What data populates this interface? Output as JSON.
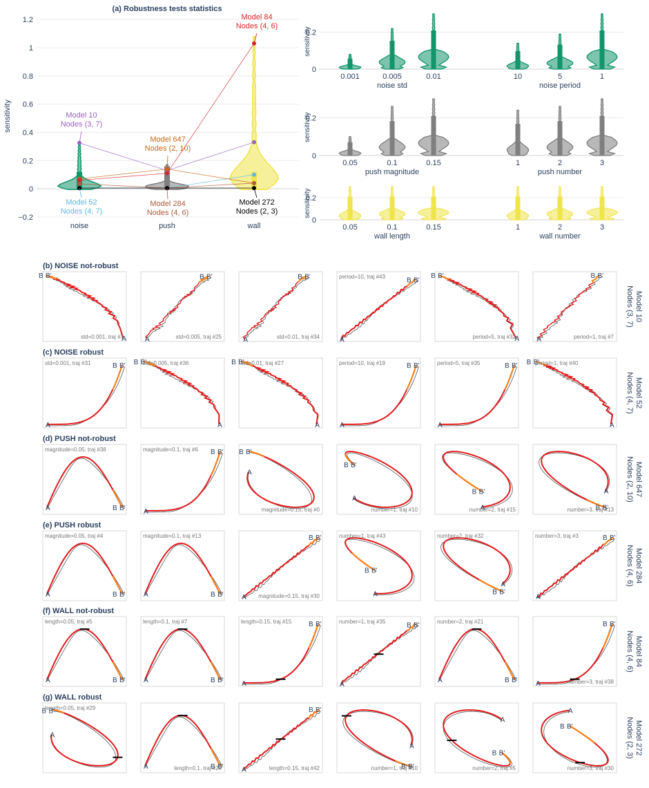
{
  "chart_data": [
    {
      "id": "a",
      "type": "violin",
      "title": "(a) Robustness tests statistics",
      "ylabel": "sensitivity",
      "ylim": [
        -0.22,
        1.25
      ],
      "yticks": [
        "−0.2",
        "0",
        "0.2",
        "0.4",
        "0.6",
        "0.8",
        "1",
        "1.2"
      ],
      "ytick_values": [
        -0.2,
        0,
        0.2,
        0.4,
        0.6,
        0.8,
        1,
        1.2
      ],
      "categories": [
        "noise",
        "push",
        "wall"
      ],
      "violin_colors": [
        "#12956b",
        "#7f7f7f",
        "#efe44a"
      ],
      "violin_max": [
        0.33,
        0.17,
        1.08
      ],
      "models": [
        {
          "model": "Model 10",
          "nodes": "Nodes (3, 7)",
          "color": "#9a62c4",
          "values": [
            0.325,
            0.13,
            0.33
          ]
        },
        {
          "model": "Model 52",
          "nodes": "Nodes (4, 7)",
          "color": "#5eb7e0",
          "values": [
            0.005,
            0.005,
            0.1
          ]
        },
        {
          "model": "Model 647",
          "nodes": "Nodes (2, 10)",
          "color": "#cc6611",
          "values": [
            0.07,
            0.14,
            0.04
          ]
        },
        {
          "model": "Model 284",
          "nodes": "Nodes (4, 6)",
          "color": "#b05a3c",
          "values": [
            0.035,
            0.005,
            0.04
          ]
        },
        {
          "model": "Model 84",
          "nodes": "Nodes (4, 6)",
          "color": "#d62728",
          "values": [
            0.06,
            0.11,
            1.03
          ]
        },
        {
          "model": "Model 272",
          "nodes": "Nodes (2, 3)",
          "color": "#000000",
          "values": [
            0.005,
            0.005,
            0.005
          ]
        }
      ]
    },
    {
      "id": "noise",
      "type": "violin",
      "ylabel": "sensitivity",
      "ylim": [
        0,
        0.3
      ],
      "yticks": [
        "0",
        "0.2"
      ],
      "color": "#12956b",
      "groups": [
        {
          "xlabel": "noise std",
          "categories": [
            "0.001",
            "0.005",
            "0.01"
          ],
          "max": [
            0.08,
            0.22,
            0.3
          ]
        },
        {
          "xlabel": "noise period",
          "categories": [
            "10",
            "5",
            "1"
          ],
          "max": [
            0.14,
            0.19,
            0.3
          ]
        }
      ]
    },
    {
      "id": "push",
      "type": "violin",
      "ylabel": "sensitivity",
      "ylim": [
        0,
        0.3
      ],
      "yticks": [
        "0",
        "0.2"
      ],
      "color": "#7f7f7f",
      "groups": [
        {
          "xlabel": "push magnitude",
          "categories": [
            "0.05",
            "0.1",
            "0.15"
          ],
          "max": [
            0.1,
            0.26,
            0.3
          ]
        },
        {
          "xlabel": "push number",
          "categories": [
            "1",
            "2",
            "3"
          ],
          "max": [
            0.24,
            0.26,
            0.3
          ]
        }
      ]
    },
    {
      "id": "wall",
      "type": "violin",
      "ylabel": "sensitivity",
      "ylim": [
        0,
        0.3
      ],
      "yticks": [
        "0",
        "0.2"
      ],
      "color": "#efe44a",
      "groups": [
        {
          "xlabel": "wall length",
          "categories": [
            "0.05",
            "0.1",
            "0.15"
          ],
          "max": [
            0.3,
            0.3,
            0.3
          ]
        },
        {
          "xlabel": "wall number",
          "categories": [
            "1",
            "2",
            "3"
          ],
          "max": [
            0.3,
            0.3,
            0.3
          ]
        }
      ]
    },
    {
      "id": "trajectories",
      "type": "line",
      "rows": [
        {
          "title": "(b) NOISE not-robust",
          "model": "Model 10",
          "nodes": "Nodes (3, 7)",
          "labels": [
            "std=0.001, traj #7",
            "std=0.005, traj #25",
            "std=0.01, traj #34",
            "period=10, traj #43",
            "period=5, traj #32",
            "period=1, traj #7"
          ]
        },
        {
          "title": "(c) NOISE robust",
          "model": "Model 52",
          "nodes": "Nodes (4, 7)",
          "labels": [
            "std=0.001, traj #31",
            "std=0.005, traj #36",
            "std=0.01, traj #27",
            "period=10, traj #19",
            "period=5, traj #35",
            "period=1, traj #40"
          ]
        },
        {
          "title": "(d) PUSH not-robust",
          "model": "Model 647",
          "nodes": "Nodes (2, 10)",
          "labels": [
            "magnitude=0.05, traj #38",
            "magnitude=0.1, traj #6",
            "magnitude=0.15, traj #0",
            "number=1, traj #10",
            "number=2, traj #15",
            "number=3, traj #13"
          ]
        },
        {
          "title": "(e) PUSH robust",
          "model": "Model 284",
          "nodes": "Nodes (4, 6)",
          "labels": [
            "magnitude=0.05, traj #4",
            "magnitude=0.1, traj #13",
            "magnitude=0.15, traj #30",
            "number=1, traj #43",
            "number=2, traj #32",
            "number=3, traj #3"
          ]
        },
        {
          "title": "(f) WALL not-robust",
          "model": "Model 84",
          "nodes": "Nodes (4, 6)",
          "labels": [
            "length=0.05, traj #5",
            "length=0.1, traj #7",
            "length=0.15, traj #15",
            "number=1, traj #35",
            "number=2, traj #21",
            "number=3, traj #38"
          ]
        },
        {
          "title": "(g) WALL robust",
          "model": "Model 272",
          "nodes": "Nodes (2, 3)",
          "labels": [
            "length=0.05, traj #29",
            "length=0.1, traj #28",
            "length=0.15, traj #42",
            "number=1, traj #10",
            "number=2, traj #5",
            "number=3, traj #30"
          ]
        }
      ],
      "point_labels": [
        "A",
        "B",
        "B'"
      ]
    }
  ]
}
